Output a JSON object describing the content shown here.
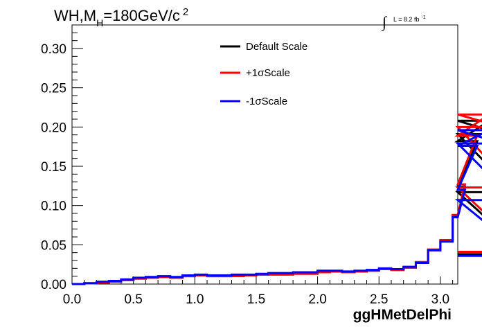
{
  "chart_data": {
    "type": "line",
    "title": "WH,M",
    "title_sub": "H",
    "title_rest": "=180GeV/c",
    "title_sup": "2",
    "lumi_symbol": "∫",
    "lumi_text": "L = 8.2 fb",
    "lumi_sup": "-1",
    "xlabel": "ggHMetDelPhi",
    "ylabel": "",
    "xlim": [
      0,
      3.14159
    ],
    "ylim": [
      0,
      0.33
    ],
    "bin_width": 0.1,
    "x_ticks": [
      "0.0",
      "0.5",
      "1.0",
      "1.5",
      "2.0",
      "2.5",
      "3.0"
    ],
    "x_tick_values": [
      0,
      0.5,
      1.0,
      1.5,
      2.0,
      2.5,
      3.0
    ],
    "y_ticks": [
      "0.00",
      "0.05",
      "0.10",
      "0.15",
      "0.20",
      "0.25",
      "0.30"
    ],
    "y_tick_values": [
      0,
      0.05,
      0.1,
      0.15,
      0.2,
      0.25,
      0.3
    ],
    "legend_placement": "top-center",
    "grid": false,
    "series": [
      {
        "name": "Default Scale",
        "color": "#000000",
        "values": [
          0.0,
          0.001,
          0.002,
          0.003,
          0.005,
          0.007,
          0.008,
          0.009,
          0.008,
          0.01,
          0.011,
          0.01,
          0.01,
          0.011,
          0.011,
          0.012,
          0.013,
          0.013,
          0.014,
          0.014,
          0.016,
          0.016,
          0.015,
          0.016,
          0.017,
          0.019,
          0.018,
          0.021,
          0.027,
          0.043,
          0.055,
          0.087,
          0.124,
          0.182,
          0.208,
          0.191,
          0.117,
          0.038
        ]
      },
      {
        "name": "+1σScale",
        "color": "#ff0000",
        "values": [
          0.0,
          0.001,
          0.002,
          0.003,
          0.005,
          0.007,
          0.008,
          0.009,
          0.008,
          0.01,
          0.011,
          0.01,
          0.01,
          0.01,
          0.011,
          0.012,
          0.012,
          0.012,
          0.013,
          0.013,
          0.015,
          0.016,
          0.015,
          0.016,
          0.017,
          0.019,
          0.018,
          0.021,
          0.028,
          0.044,
          0.056,
          0.088,
          0.127,
          0.189,
          0.216,
          0.2,
          0.123,
          0.041
        ]
      },
      {
        "name": "-1σScale",
        "color": "#0000ff",
        "values": [
          0.0,
          0.001,
          0.003,
          0.004,
          0.006,
          0.008,
          0.009,
          0.01,
          0.009,
          0.011,
          0.012,
          0.011,
          0.011,
          0.012,
          0.012,
          0.013,
          0.014,
          0.014,
          0.015,
          0.015,
          0.017,
          0.017,
          0.016,
          0.017,
          0.018,
          0.02,
          0.019,
          0.022,
          0.027,
          0.043,
          0.054,
          0.085,
          0.12,
          0.176,
          0.196,
          0.179,
          0.107,
          0.036
        ]
      }
    ]
  }
}
